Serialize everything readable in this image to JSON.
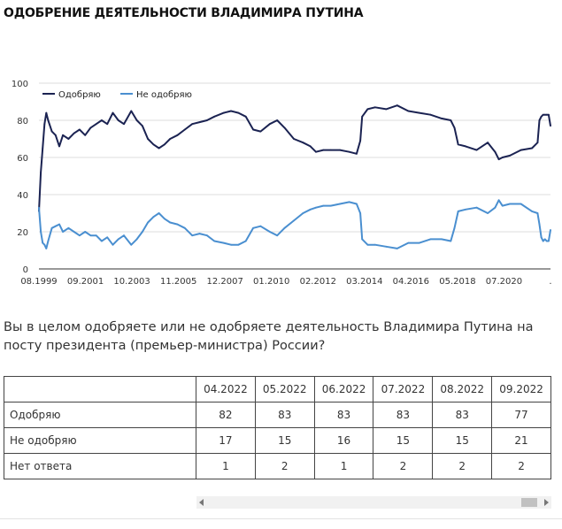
{
  "page": {
    "title": "ОДОБРЕНИЕ ДЕЯТЕЛЬНОСТИ ВЛАДИМИРА ПУТИНА",
    "question": "Вы в целом одобряете или не одобряете деятельность Владимира Путина на посту президента (премьер-министра) России?"
  },
  "colors": {
    "approve": "#1b2352",
    "disapprove": "#4a8fd0",
    "grid": "#dddddd",
    "axis": "#333333"
  },
  "chart_data": {
    "type": "line",
    "title": "",
    "xlabel": "",
    "ylabel": "",
    "ylim": [
      0,
      100
    ],
    "yticks": [
      0,
      20,
      40,
      60,
      80,
      100
    ],
    "grid": true,
    "legend_position": "top-left",
    "x_start": "08.1999",
    "x_end": "09.2022",
    "xtick_labels": [
      "08.1999",
      "09.2001",
      "10.2003",
      "11.2005",
      "12.2007",
      "01.2010",
      "02.2012",
      "03.2014",
      "04.2016",
      "05.2018",
      "07.2020",
      "."
    ],
    "x": [
      "08.1999",
      "09.1999",
      "10.1999",
      "11.1999",
      "12.1999",
      "01.2000",
      "03.2000",
      "05.2000",
      "07.2000",
      "09.2000",
      "12.2000",
      "03.2001",
      "06.2001",
      "09.2001",
      "12.2001",
      "03.2002",
      "06.2002",
      "09.2002",
      "12.2002",
      "03.2003",
      "06.2003",
      "10.2003",
      "01.2004",
      "04.2004",
      "07.2004",
      "10.2004",
      "01.2005",
      "04.2005",
      "07.2005",
      "11.2005",
      "03.2006",
      "07.2006",
      "11.2006",
      "03.2007",
      "07.2007",
      "12.2007",
      "04.2008",
      "08.2008",
      "12.2008",
      "04.2009",
      "08.2009",
      "01.2010",
      "05.2010",
      "09.2010",
      "02.2011",
      "07.2011",
      "11.2011",
      "02.2012",
      "06.2012",
      "10.2012",
      "03.2013",
      "08.2013",
      "12.2013",
      "02.2014",
      "03.2014",
      "06.2014",
      "10.2014",
      "04.2015",
      "10.2015",
      "04.2016",
      "10.2016",
      "04.2017",
      "10.2017",
      "03.2018",
      "05.2018",
      "07.2018",
      "11.2018",
      "05.2019",
      "11.2019",
      "03.2020",
      "05.2020",
      "07.2020",
      "11.2020",
      "05.2021",
      "11.2021",
      "02.2022",
      "03.2022",
      "04.2022",
      "05.2022",
      "06.2022",
      "07.2022",
      "08.2022",
      "09.2022"
    ],
    "series": [
      {
        "name": "Одобряю",
        "color": "#1b2352",
        "values": [
          31,
          52,
          65,
          78,
          84,
          80,
          74,
          72,
          66,
          72,
          70,
          73,
          75,
          72,
          76,
          78,
          80,
          78,
          84,
          80,
          78,
          85,
          80,
          77,
          70,
          67,
          65,
          67,
          70,
          72,
          75,
          78,
          79,
          80,
          82,
          84,
          85,
          84,
          82,
          75,
          74,
          78,
          80,
          76,
          70,
          68,
          66,
          63,
          64,
          64,
          64,
          63,
          62,
          69,
          82,
          86,
          87,
          86,
          88,
          85,
          84,
          83,
          81,
          80,
          76,
          67,
          66,
          64,
          68,
          63,
          59,
          60,
          61,
          64,
          65,
          68,
          80,
          82,
          83,
          83,
          83,
          83,
          77
        ]
      },
      {
        "name": "Не одобряю",
        "color": "#4a8fd0",
        "values": [
          33,
          20,
          14,
          13,
          11,
          15,
          22,
          23,
          24,
          20,
          22,
          20,
          18,
          20,
          18,
          18,
          15,
          17,
          13,
          16,
          18,
          13,
          16,
          20,
          25,
          28,
          30,
          27,
          25,
          24,
          22,
          18,
          19,
          18,
          15,
          14,
          13,
          13,
          15,
          22,
          23,
          20,
          18,
          22,
          26,
          30,
          32,
          33,
          34,
          34,
          35,
          36,
          35,
          30,
          16,
          13,
          13,
          12,
          11,
          14,
          14,
          16,
          16,
          15,
          22,
          31,
          32,
          33,
          30,
          33,
          37,
          34,
          35,
          35,
          31,
          30,
          24,
          17,
          15,
          16,
          15,
          15,
          21
        ]
      }
    ]
  },
  "table": {
    "columns": [
      "",
      "04.2022",
      "05.2022",
      "06.2022",
      "07.2022",
      "08.2022",
      "09.2022"
    ],
    "rows": [
      {
        "label": "Одобряю",
        "values": [
          "82",
          "83",
          "83",
          "83",
          "83",
          "77"
        ]
      },
      {
        "label": "Не одобряю",
        "values": [
          "17",
          "15",
          "16",
          "15",
          "15",
          "21"
        ]
      },
      {
        "label": "Нет ответа",
        "values": [
          "1",
          "2",
          "1",
          "2",
          "2",
          "2"
        ]
      }
    ]
  }
}
